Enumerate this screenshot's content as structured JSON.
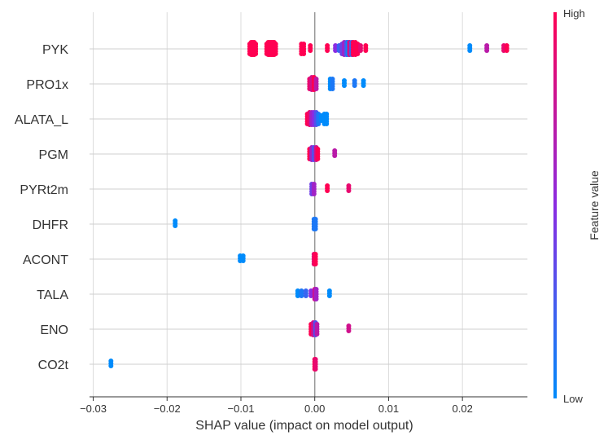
{
  "chart_data": {
    "type": "scatter",
    "title": "",
    "xlabel": "SHAP value (impact on model output)",
    "ylabel": "",
    "xlim": [
      -0.0305,
      0.0288
    ],
    "x_ticks": [
      -0.03,
      -0.02,
      -0.01,
      0.0,
      0.01,
      0.02
    ],
    "x_tick_labels": [
      "−0.03",
      "−0.02",
      "−0.01",
      "0.00",
      "0.01",
      "0.02"
    ],
    "grid": true,
    "colorbar": {
      "title": "Feature value",
      "high_label": "High",
      "low_label": "Low",
      "high_color": "#ff0052",
      "mid_color": "#8a2be2",
      "low_color": "#008bfb"
    },
    "features": [
      {
        "name": "PYK",
        "points": [
          {
            "x": -0.0088,
            "c": 1.0
          },
          {
            "x": -0.0086,
            "c": 1.0
          },
          {
            "x": -0.0084,
            "c": 1.0
          },
          {
            "x": -0.0082,
            "c": 1.0
          },
          {
            "x": -0.008,
            "c": 1.0
          },
          {
            "x": -0.0065,
            "c": 1.0
          },
          {
            "x": -0.0063,
            "c": 1.0
          },
          {
            "x": -0.0061,
            "c": 1.0
          },
          {
            "x": -0.0059,
            "c": 1.0
          },
          {
            "x": -0.0057,
            "c": 1.0
          },
          {
            "x": -0.0055,
            "c": 1.0
          },
          {
            "x": -0.0053,
            "c": 1.0
          },
          {
            "x": -0.0018,
            "c": 1.0
          },
          {
            "x": -0.0015,
            "c": 1.0
          },
          {
            "x": -0.0006,
            "c": 1.0
          },
          {
            "x": 0.0017,
            "c": 1.0
          },
          {
            "x": 0.0028,
            "c": 0.5
          },
          {
            "x": 0.0033,
            "c": 0.2
          },
          {
            "x": 0.0037,
            "c": 0.4
          },
          {
            "x": 0.004,
            "c": 0.6
          },
          {
            "x": 0.0043,
            "c": 0.3
          },
          {
            "x": 0.0045,
            "c": 0.0
          },
          {
            "x": 0.0047,
            "c": 0.8
          },
          {
            "x": 0.005,
            "c": 0.2
          },
          {
            "x": 0.0052,
            "c": 1.0
          },
          {
            "x": 0.0055,
            "c": 1.0
          },
          {
            "x": 0.0058,
            "c": 1.0
          },
          {
            "x": 0.0062,
            "c": 0.9
          },
          {
            "x": 0.0069,
            "c": 1.0
          },
          {
            "x": 0.021,
            "c": 0.0
          },
          {
            "x": 0.0233,
            "c": 0.7
          },
          {
            "x": 0.0256,
            "c": 0.9
          },
          {
            "x": 0.026,
            "c": 1.0
          }
        ]
      },
      {
        "name": "PRO1x",
        "points": [
          {
            "x": -0.0007,
            "c": 0.9
          },
          {
            "x": -0.0004,
            "c": 0.8
          },
          {
            "x": -0.0001,
            "c": 1.0
          },
          {
            "x": 0.0002,
            "c": 0.7
          },
          {
            "x": 0.0021,
            "c": 0.0
          },
          {
            "x": 0.0024,
            "c": 0.1
          },
          {
            "x": 0.004,
            "c": 0.0
          },
          {
            "x": 0.0054,
            "c": 0.1
          },
          {
            "x": 0.0066,
            "c": 0.0
          }
        ]
      },
      {
        "name": "ALATA_L",
        "points": [
          {
            "x": -0.001,
            "c": 1.0
          },
          {
            "x": -0.0007,
            "c": 0.9
          },
          {
            "x": -0.0004,
            "c": 0.6
          },
          {
            "x": -0.0001,
            "c": 0.5
          },
          {
            "x": 0.0002,
            "c": 0.3
          },
          {
            "x": 0.0005,
            "c": 0.1
          },
          {
            "x": 0.0009,
            "c": 0.0
          },
          {
            "x": 0.0013,
            "c": 0.0
          },
          {
            "x": 0.0016,
            "c": 0.0
          }
        ]
      },
      {
        "name": "PGM",
        "points": [
          {
            "x": -0.0007,
            "c": 1.0
          },
          {
            "x": -0.0004,
            "c": 0.6
          },
          {
            "x": -0.0001,
            "c": 0.3
          },
          {
            "x": 0.0002,
            "c": 0.8
          },
          {
            "x": 0.0004,
            "c": 1.0
          },
          {
            "x": 0.0027,
            "c": 0.7
          }
        ]
      },
      {
        "name": "PYRt2m",
        "points": [
          {
            "x": -0.0004,
            "c": 0.4
          },
          {
            "x": -0.0001,
            "c": 0.6
          },
          {
            "x": 0.0017,
            "c": 1.0
          },
          {
            "x": 0.0046,
            "c": 0.9
          }
        ]
      },
      {
        "name": "DHFR",
        "points": [
          {
            "x": -0.0189,
            "c": 0.0
          },
          {
            "x": -0.0001,
            "c": 0.1
          },
          {
            "x": 0.0001,
            "c": 0.1
          }
        ]
      },
      {
        "name": "ACONT",
        "points": [
          {
            "x": -0.0101,
            "c": 0.0
          },
          {
            "x": -0.0097,
            "c": 0.0
          },
          {
            "x": -0.0001,
            "c": 0.9
          },
          {
            "x": 0.0001,
            "c": 1.0
          }
        ]
      },
      {
        "name": "TALA",
        "points": [
          {
            "x": -0.0023,
            "c": 0.0
          },
          {
            "x": -0.0018,
            "c": 0.1
          },
          {
            "x": -0.0012,
            "c": 0.2
          },
          {
            "x": -0.0005,
            "c": 0.5
          },
          {
            "x": 0.0,
            "c": 0.8
          },
          {
            "x": 0.0002,
            "c": 0.6
          },
          {
            "x": 0.002,
            "c": 0.0
          }
        ]
      },
      {
        "name": "ENO",
        "points": [
          {
            "x": -0.0005,
            "c": 1.0
          },
          {
            "x": -0.0002,
            "c": 0.8
          },
          {
            "x": 0.0001,
            "c": 0.3
          },
          {
            "x": 0.0003,
            "c": 0.7
          },
          {
            "x": 0.0046,
            "c": 0.8
          }
        ]
      },
      {
        "name": "CO2t",
        "points": [
          {
            "x": -0.0276,
            "c": 0.0
          },
          {
            "x": 0.0,
            "c": 1.0
          },
          {
            "x": 0.0001,
            "c": 0.9
          }
        ]
      }
    ]
  }
}
